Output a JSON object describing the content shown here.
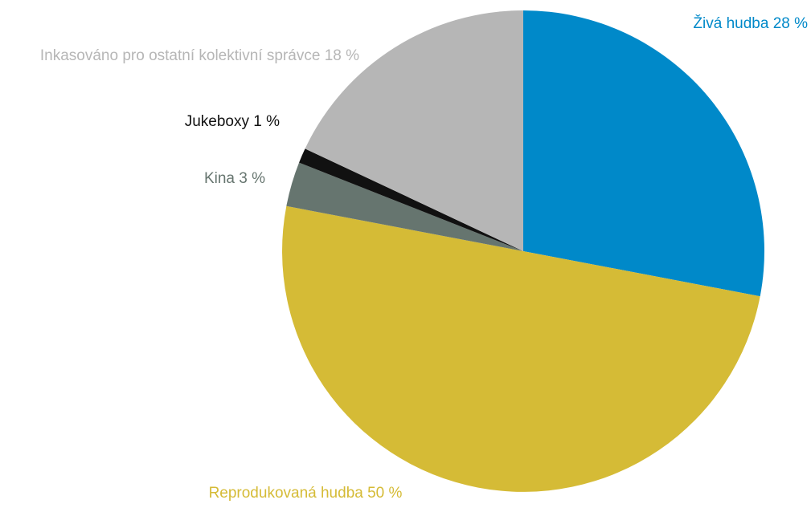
{
  "chart_data": {
    "type": "pie",
    "categories": [
      "Živá hudba",
      "Reprodukovaná hudba",
      "Kina",
      "Jukeboxy",
      "Inkasováno pro ostatní kolektivní správce"
    ],
    "values": [
      28,
      50,
      3,
      1,
      18
    ],
    "value_labels": [
      "28 %",
      "50 %",
      "3 %",
      "1 %",
      "18 %"
    ],
    "colors": [
      "#0089c9",
      "#d5bb36",
      "#66756f",
      "#111111",
      "#b6b6b6"
    ]
  }
}
